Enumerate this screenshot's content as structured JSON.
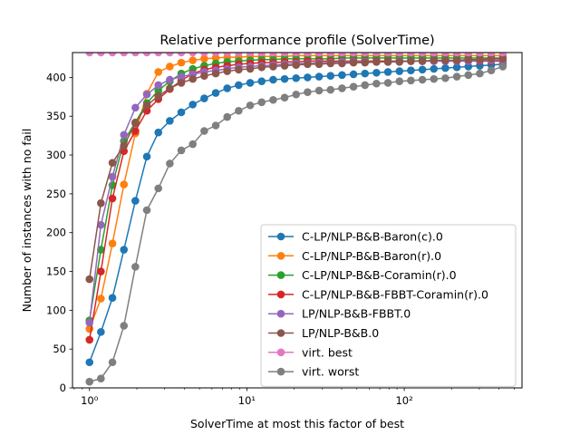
{
  "chart_data": {
    "type": "line",
    "title": "Relative performance profile (SolverTime)",
    "xlabel": "SolverTime at most this factor of best",
    "ylabel": "Number of instances with no fail",
    "xscale": "log",
    "xlim": [
      0.78,
      560
    ],
    "ylim": [
      0,
      432
    ],
    "x_ticks": [
      1,
      10,
      100
    ],
    "x_tick_labels": [
      "10⁰",
      "10¹",
      "10²"
    ],
    "y_ticks": [
      0,
      50,
      100,
      150,
      200,
      250,
      300,
      350,
      400
    ],
    "y_tick_labels": [
      "0",
      "50",
      "100",
      "150",
      "200",
      "250",
      "300",
      "350",
      "400"
    ],
    "grid": false,
    "legend_position": "lower-right",
    "marker": "circle",
    "x": [
      1.0,
      1.182,
      1.399,
      1.655,
      1.957,
      2.315,
      2.738,
      3.239,
      3.831,
      4.532,
      5.361,
      6.341,
      7.501,
      8.873,
      10.5,
      12.42,
      14.69,
      17.37,
      20.55,
      24.31,
      28.76,
      34.02,
      40.24,
      47.6,
      56.31,
      66.6,
      78.79,
      93.2,
      110.2,
      130.4,
      154.3,
      182.5,
      215.9,
      255.4,
      302.1,
      357.3,
      422.7
    ],
    "series": [
      {
        "name": "C-LP/NLP-B&B-Baron(c).0",
        "color": "#1f77b4",
        "values": [
          33,
          72,
          116,
          178,
          241,
          298,
          329,
          344,
          355,
          365,
          373,
          380,
          386,
          390,
          393,
          395,
          397,
          398,
          399,
          400,
          401,
          402,
          403,
          404,
          405,
          406,
          407,
          408,
          409,
          410,
          411,
          412,
          413,
          414,
          415,
          416,
          417
        ]
      },
      {
        "name": "C-LP/NLP-B&B-Baron(r).0",
        "color": "#ff7f0e",
        "values": [
          76,
          115,
          186,
          262,
          328,
          379,
          407,
          414,
          419,
          422,
          424,
          425,
          426,
          426,
          427,
          427,
          427,
          427,
          428,
          428,
          428,
          428,
          428,
          428,
          428,
          428,
          428,
          428,
          428,
          428,
          428,
          428,
          428,
          428,
          428,
          428,
          428
        ]
      },
      {
        "name": "C-LP/NLP-B&B-Coramin(r).0",
        "color": "#2ca02c",
        "values": [
          87,
          178,
          261,
          318,
          342,
          367,
          383,
          395,
          405,
          411,
          415,
          418,
          420,
          421,
          422,
          423,
          423,
          424,
          424,
          424,
          424,
          424,
          425,
          425,
          425,
          425,
          425,
          425,
          425,
          425,
          425,
          425,
          425,
          425,
          425,
          425,
          425
        ]
      },
      {
        "name": "C-LP/NLP-B&B-FBBT-Coramin(r).0",
        "color": "#d62728",
        "values": [
          62,
          150,
          244,
          305,
          331,
          357,
          372,
          385,
          396,
          405,
          410,
          413,
          415,
          417,
          418,
          419,
          419,
          420,
          420,
          421,
          421,
          421,
          421,
          421,
          421,
          421,
          421,
          421,
          421,
          421,
          421,
          421,
          421,
          421,
          421,
          421,
          421
        ]
      },
      {
        "name": "LP/NLP-B&B-FBBT.0",
        "color": "#9467bd",
        "values": [
          84,
          210,
          272,
          326,
          361,
          378,
          390,
          397,
          401,
          404,
          407,
          409,
          411,
          413,
          414,
          415,
          416,
          417,
          418,
          418,
          419,
          419,
          420,
          420,
          420,
          420,
          420,
          421,
          421,
          421,
          421,
          421,
          421,
          421,
          422,
          422,
          422
        ]
      },
      {
        "name": "LP/NLP-B&B.0",
        "color": "#8c564b",
        "values": [
          140,
          238,
          290,
          312,
          341,
          364,
          376,
          386,
          393,
          398,
          402,
          405,
          408,
          410,
          411,
          413,
          414,
          415,
          416,
          417,
          417,
          418,
          418,
          419,
          419,
          420,
          420,
          420,
          421,
          421,
          422,
          422,
          422,
          423,
          423,
          424,
          424
        ]
      },
      {
        "name": "virt. best",
        "color": "#e377c2",
        "values": [
          432,
          432,
          432,
          432,
          432,
          432,
          432,
          432,
          432,
          432,
          432,
          432,
          432,
          432,
          432,
          432,
          432,
          432,
          432,
          432,
          432,
          432,
          432,
          432,
          432,
          432,
          432,
          432,
          432,
          432,
          432,
          432,
          432,
          432,
          432,
          432,
          432
        ]
      },
      {
        "name": "virt. worst",
        "color": "#7f7f7f",
        "values": [
          8,
          12,
          33,
          80,
          156,
          229,
          257,
          289,
          306,
          314,
          331,
          338,
          349,
          357,
          364,
          368,
          371,
          374,
          378,
          381,
          383,
          384,
          386,
          388,
          390,
          392,
          393,
          395,
          396,
          397,
          398,
          399,
          401,
          403,
          405,
          409,
          414
        ]
      }
    ]
  }
}
